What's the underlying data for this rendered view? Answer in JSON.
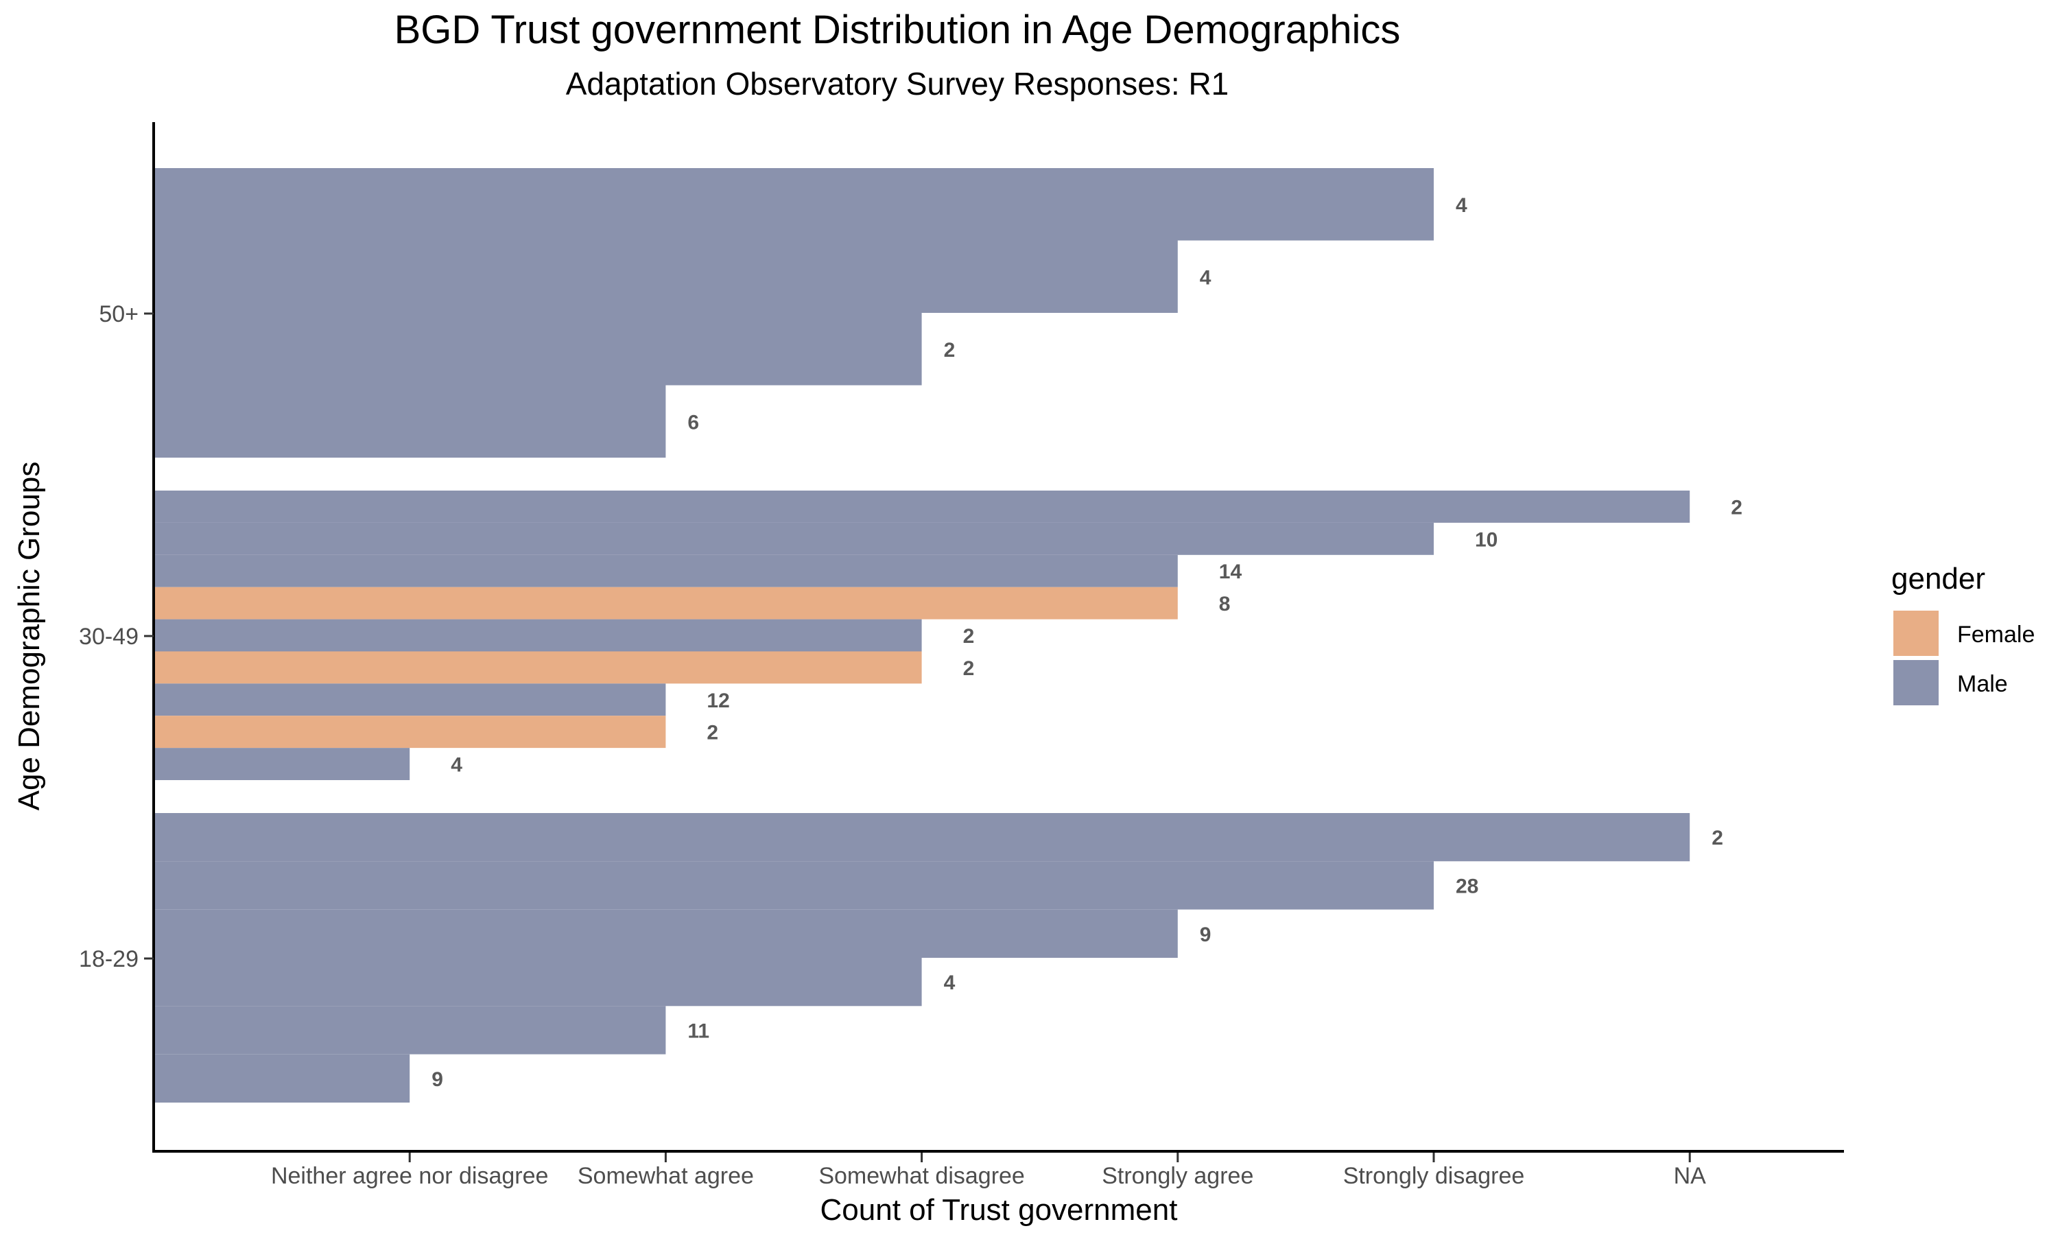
{
  "chart_data": {
    "type": "bar",
    "orientation": "horizontal",
    "title": "BGD Trust government Distribution in Age Demographics",
    "subtitle": "Adaptation Observatory Survey Responses: R1",
    "xlabel": "Count of Trust government",
    "ylabel": "Age Demographic Groups",
    "x_categories": [
      "Neither agree nor disagree",
      "Somewhat agree",
      "Somewhat disagree",
      "Strongly agree",
      "Strongly disagree",
      "NA"
    ],
    "y_categories": [
      "18-29",
      "30-49",
      "50+"
    ],
    "legend": {
      "title": "gender",
      "position": "right",
      "items": [
        {
          "name": "Female",
          "color": "#E8AE86"
        },
        {
          "name": "Male",
          "color": "#8A92AD"
        }
      ]
    },
    "grid": false,
    "groups": [
      {
        "age": "50+",
        "bars": [
          {
            "response": "Strongly disagree",
            "gender": "Male",
            "count": 4
          },
          {
            "response": "Strongly agree",
            "gender": "Male",
            "count": 4
          },
          {
            "response": "Somewhat disagree",
            "gender": "Male",
            "count": 2
          },
          {
            "response": "Somewhat agree",
            "gender": "Male",
            "count": 6
          }
        ]
      },
      {
        "age": "30-49",
        "bars": [
          {
            "response": "NA",
            "gender": "Male",
            "count": 2
          },
          {
            "response": "Strongly disagree",
            "gender": "Male",
            "count": 10
          },
          {
            "response": "Strongly agree",
            "gender": "Male",
            "count": 14
          },
          {
            "response": "Strongly agree",
            "gender": "Female",
            "count": 8
          },
          {
            "response": "Somewhat disagree",
            "gender": "Male",
            "count": 2
          },
          {
            "response": "Somewhat disagree",
            "gender": "Female",
            "count": 2
          },
          {
            "response": "Somewhat agree",
            "gender": "Male",
            "count": 12
          },
          {
            "response": "Somewhat agree",
            "gender": "Female",
            "count": 2
          },
          {
            "response": "Neither agree nor disagree",
            "gender": "Male",
            "count": 4
          }
        ]
      },
      {
        "age": "18-29",
        "bars": [
          {
            "response": "NA",
            "gender": "Male",
            "count": 2
          },
          {
            "response": "Strongly disagree",
            "gender": "Male",
            "count": 28
          },
          {
            "response": "Strongly agree",
            "gender": "Male",
            "count": 9
          },
          {
            "response": "Somewhat disagree",
            "gender": "Male",
            "count": 4
          },
          {
            "response": "Somewhat agree",
            "gender": "Male",
            "count": 11
          },
          {
            "response": "Neither agree nor disagree",
            "gender": "Male",
            "count": 9
          }
        ]
      }
    ]
  }
}
